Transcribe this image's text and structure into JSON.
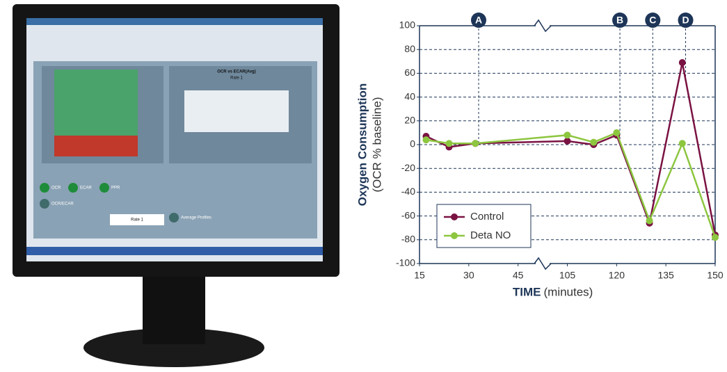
{
  "screen": {
    "texts": [
      "OCR vs ECAR(Avg)",
      "Rate 1",
      "OCR",
      "ECAR",
      "PPR",
      "OCR/ECAR",
      "Rate 1",
      "Average Profiles"
    ]
  },
  "chart_data": {
    "type": "line",
    "x_label": "TIME",
    "x_label_unit": "(minutes)",
    "y_label": "Oxygen Consumption",
    "y_label_unit": "(OCR % baseline)",
    "x": [
      17,
      24,
      32,
      105,
      113,
      120,
      130,
      140,
      150
    ],
    "x_break": [
      45,
      105
    ],
    "series": [
      {
        "name": "Control",
        "color": "#7a1242",
        "values": [
          7,
          -2,
          1,
          3,
          0,
          8,
          -66,
          69,
          -76
        ]
      },
      {
        "name": "Deta NO",
        "color": "#8dc63f",
        "values": [
          4,
          1,
          1,
          8,
          2,
          10,
          -64,
          1,
          -78
        ]
      }
    ],
    "markers": [
      {
        "label": "A",
        "x": 33
      },
      {
        "label": "B",
        "x": 121
      },
      {
        "label": "C",
        "x": 131
      },
      {
        "label": "D",
        "x": 141
      }
    ],
    "xlim": [
      15,
      150
    ],
    "xticks": [
      15,
      30,
      45,
      105,
      120,
      135,
      150
    ],
    "ylim": [
      -100,
      100
    ],
    "yticks": [
      -100,
      -80,
      -60,
      -40,
      -20,
      0,
      20,
      40,
      60,
      80,
      100
    ],
    "grid": true,
    "legend": "lower left"
  }
}
